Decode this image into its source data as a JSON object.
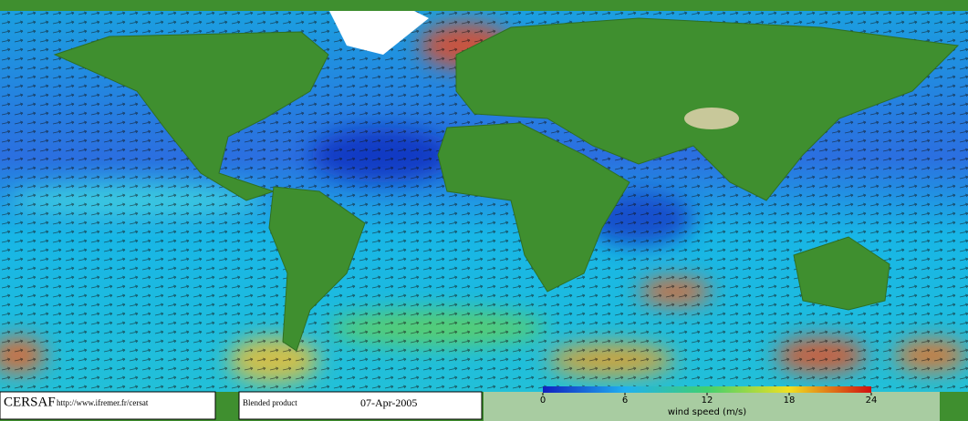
{
  "footer": {
    "logo": "CERSAF",
    "url": "http://www.ifremer.fr/cersat",
    "product": "Blended product",
    "date": "07-Apr-2005"
  },
  "colorbar": {
    "label": "wind speed (m/s)",
    "range": [
      0,
      24
    ],
    "ticks": [
      0,
      6,
      12,
      18,
      24
    ]
  }
}
